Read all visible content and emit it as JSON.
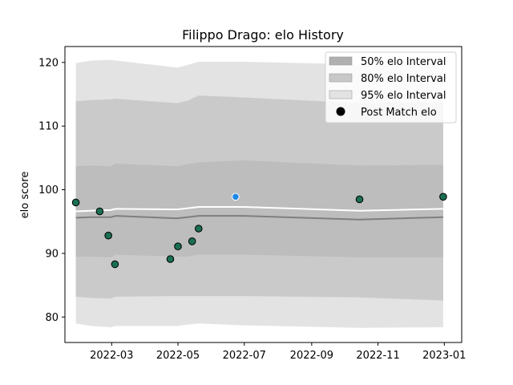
{
  "chart_data": {
    "type": "area",
    "title": "Filippo Drago: elo History",
    "xlabel": "",
    "ylabel": "elo score",
    "xlim": [
      "2022-01-17",
      "2023-01-17"
    ],
    "ylim": [
      76,
      122.5
    ],
    "x_ticks": [
      "2022-03",
      "2022-05",
      "2022-07",
      "2022-09",
      "2022-11",
      "2023-01"
    ],
    "y_ticks": [
      80,
      90,
      100,
      110,
      120
    ],
    "grid": false,
    "legend_position": "top-right",
    "band_dates": [
      "2022-01-27",
      "2022-02-10",
      "2022-02-28",
      "2022-03-05",
      "2022-04-30",
      "2022-05-10",
      "2022-05-20",
      "2022-07-01",
      "2022-10-15",
      "2022-12-31"
    ],
    "intervals": [
      {
        "name": "95% elo Interval",
        "color": "#e3e3e3",
        "upper": [
          119.9,
          120.3,
          120.4,
          120.3,
          119.2,
          119.6,
          120.1,
          120.1,
          119.7,
          119.6
        ],
        "lower": [
          79.0,
          78.6,
          78.4,
          78.6,
          78.6,
          78.8,
          79.0,
          78.7,
          78.3,
          78.4
        ]
      },
      {
        "name": "80% elo Interval",
        "color": "#cacaca",
        "upper": [
          113.9,
          114.1,
          114.2,
          114.3,
          113.6,
          114.0,
          114.8,
          114.5,
          113.6,
          113.7
        ],
        "lower": [
          83.2,
          83.0,
          82.9,
          83.2,
          83.3,
          83.3,
          83.3,
          83.3,
          83.1,
          82.6
        ]
      },
      {
        "name": "50% elo Interval",
        "color": "#bdbdbd",
        "upper": [
          103.7,
          103.8,
          103.7,
          104.1,
          103.7,
          104.0,
          104.3,
          104.6,
          103.8,
          103.9
        ],
        "lower": [
          89.5,
          89.5,
          89.4,
          89.8,
          89.5,
          89.5,
          89.8,
          89.8,
          89.4,
          89.4
        ]
      }
    ],
    "series": [
      {
        "values": [
          95.6,
          95.7,
          95.7,
          95.9,
          95.5,
          95.7,
          95.9,
          95.9,
          95.3,
          95.7
        ],
        "color": "#7f7f7f"
      },
      {
        "values": [
          96.6,
          96.7,
          96.8,
          97.0,
          96.9,
          97.1,
          97.3,
          97.3,
          96.7,
          97.0
        ],
        "color": "#ffffff"
      }
    ],
    "post_match_points": {
      "name": "Post Match elo",
      "x": [
        "2022-01-27",
        "2022-02-18",
        "2022-02-26",
        "2022-03-04",
        "2022-04-24",
        "2022-05-01",
        "2022-05-14",
        "2022-05-20",
        "2022-06-23",
        "2022-10-15",
        "2022-12-31"
      ],
      "y": [
        98.0,
        96.6,
        92.8,
        88.3,
        89.1,
        91.1,
        91.9,
        93.9,
        98.9,
        98.5,
        98.9
      ],
      "colors": [
        "#1a6f52",
        "#1a6f52",
        "#1a6f52",
        "#1a6f52",
        "#1a6f52",
        "#1a6f52",
        "#1a6f52",
        "#1a6f52",
        "#1e88e5",
        "#1a6f52",
        "#1a6f52"
      ],
      "edge_colors": [
        "#000000",
        "#000000",
        "#000000",
        "#000000",
        "#000000",
        "#000000",
        "#000000",
        "#000000",
        "#ffffff",
        "#000000",
        "#000000"
      ]
    },
    "legend": [
      {
        "label": "50% elo Interval",
        "kind": "patch",
        "color": "#b0b0b0"
      },
      {
        "label": "80% elo Interval",
        "kind": "patch",
        "color": "#c8c8c8"
      },
      {
        "label": "95% elo Interval",
        "kind": "patch",
        "color": "#e3e3e3"
      },
      {
        "label": "Post Match elo",
        "kind": "marker",
        "color": "#000000"
      }
    ]
  }
}
